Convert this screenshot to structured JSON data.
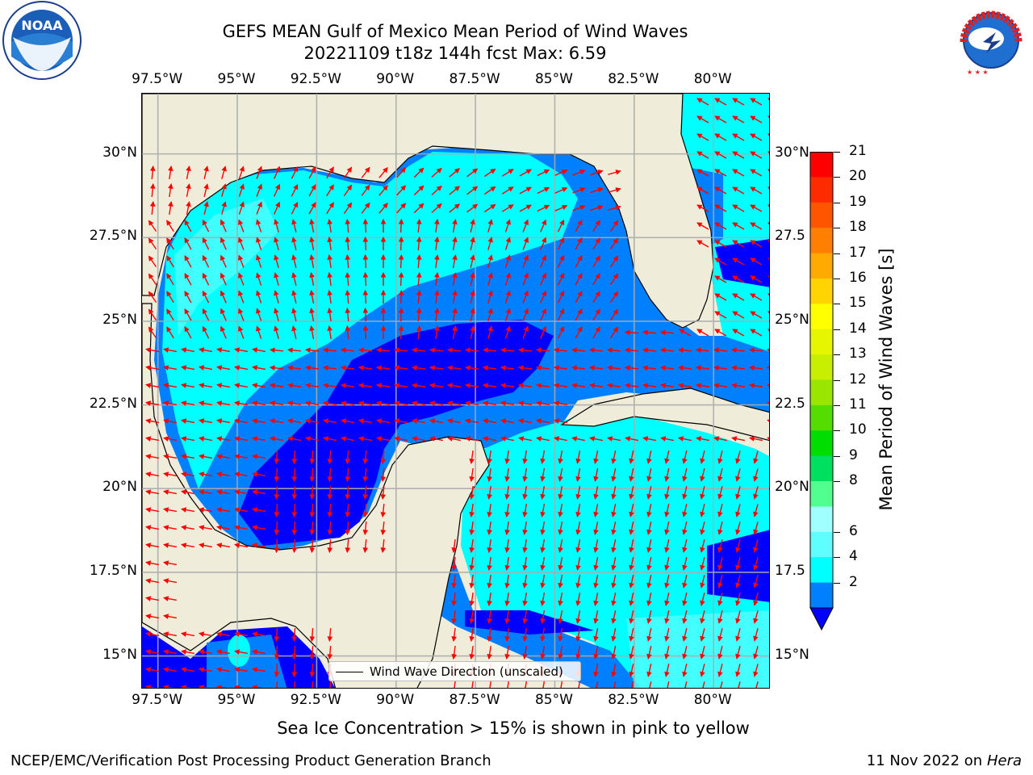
{
  "header": {
    "title_line1": "GEFS MEAN Gulf of Mexico Mean Period of Wind Waves",
    "title_line2": "20221109 t18z 144h fcst   Max: 6.59",
    "left_logo_text": "NOAA",
    "right_logo_text": "NATIONAL WEATHER SERVICE"
  },
  "axes": {
    "lon_ticks": [
      "97.5°W",
      "95°W",
      "92.5°W",
      "90°W",
      "87.5°W",
      "85°W",
      "82.5°W",
      "80°W"
    ],
    "lat_ticks_left": [
      "30°N",
      "27.5°N",
      "25°N",
      "22.5°N",
      "20°N",
      "17.5°N",
      "15°N"
    ],
    "lat_ticks_right": [
      "30°N",
      "27.5",
      "25°N",
      "22.5",
      "20°N",
      "17.5",
      "15°N"
    ],
    "lon_range": [
      -98,
      -78.2
    ],
    "lat_range": [
      14,
      31.8
    ],
    "grid": true
  },
  "legend": {
    "label": "Wind Wave Direction (unscaled)"
  },
  "colorbar": {
    "title": "Mean Period of Wind Waves [s]",
    "labels": [
      "21",
      "20",
      "19",
      "18",
      "17",
      "16",
      "15",
      "14",
      "13",
      "12",
      "11",
      "10",
      "9",
      "8",
      "6",
      "4",
      "2"
    ],
    "colors": [
      "#ff0000",
      "#ff2b00",
      "#ff5500",
      "#ff8000",
      "#ffaa00",
      "#ffd400",
      "#ffff00",
      "#e6f600",
      "#c8ee00",
      "#9ae600",
      "#55dd00",
      "#00dd00",
      "#00e060",
      "#50ff90",
      "#a0ffff",
      "#60ffff",
      "#00ffff",
      "#007fff"
    ],
    "extend_color": "#0000ff"
  },
  "colors": {
    "land": "#efedda",
    "wave_dark": "#0000ff",
    "wave_mid": "#007fff",
    "wave_light": "#00ffff",
    "wave_pale": "#50ffff",
    "arrow": "#ff0000"
  },
  "note": "Sea Ice Concentration > 15% is shown in pink to yellow",
  "footer": {
    "left": "NCEP/EMC/Verification Post Processing Product Generation Branch",
    "date": "11 Nov 2022 on",
    "machine": "Hera"
  }
}
